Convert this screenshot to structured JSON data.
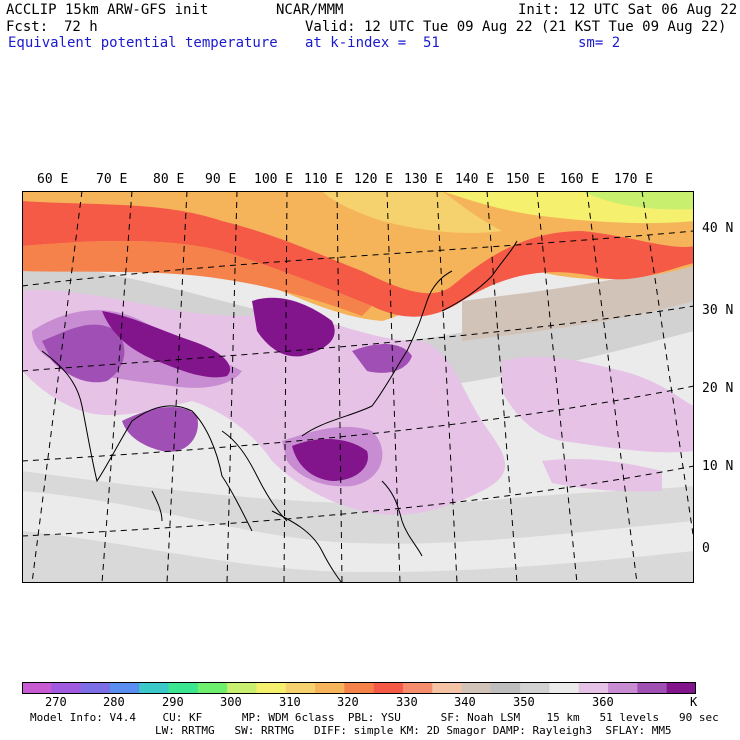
{
  "header": {
    "model": "ACCLIP 15km ARW-GFS init",
    "center": "NCAR/MMM",
    "init": "Init: 12 UTC Sat 06 Aug 22",
    "fcst_label": "Fcst:",
    "fcst_value": "72 h",
    "valid": "Valid: 12 UTC Tue 09 Aug 22 (21 KST Tue 09 Aug 22)",
    "field": "Equivalent potential temperature",
    "level": "at k-index =  51",
    "smoothing": "sm= 2"
  },
  "map": {
    "lon_labels": [
      "60 E",
      "70 E",
      "80 E",
      "90 E",
      "100 E",
      "110 E",
      "120 E",
      "130 E",
      "140 E",
      "150 E",
      "160 E",
      "170 E"
    ],
    "lat_labels": [
      "40 N",
      "30 N",
      "20 N",
      "10 N",
      "0"
    ]
  },
  "colorbar": {
    "labels": [
      "270",
      "280",
      "290",
      "300",
      "310",
      "320",
      "330",
      "340",
      "350",
      "360"
    ],
    "unit": "K",
    "colors": [
      "#c85ad2",
      "#a05ae0",
      "#7b6ee6",
      "#5a8ef0",
      "#3ac8c8",
      "#3ce690",
      "#6ef06e",
      "#c8f06e",
      "#f5f06e",
      "#f5d26e",
      "#f5b45a",
      "#f5824b",
      "#f55a46",
      "#f58c6e",
      "#f5c3a5",
      "#d2c3b9",
      "#bebebe",
      "#d2d2d2",
      "#ebebeb",
      "#e6c3e6",
      "#c88cd2",
      "#a050b4",
      "#82148c"
    ]
  },
  "footer": {
    "line1": "Model Info: V4.4    CU: KF      MP: WDM 6class  PBL: YSU      SF: Noah LSM    15 km   51 levels   90 sec",
    "line2": "LW: RRTMG   SW: RRTMG   DIFF: simple KM: 2D Smagor DAMP: Rayleigh3  SFLAY: MM5"
  }
}
